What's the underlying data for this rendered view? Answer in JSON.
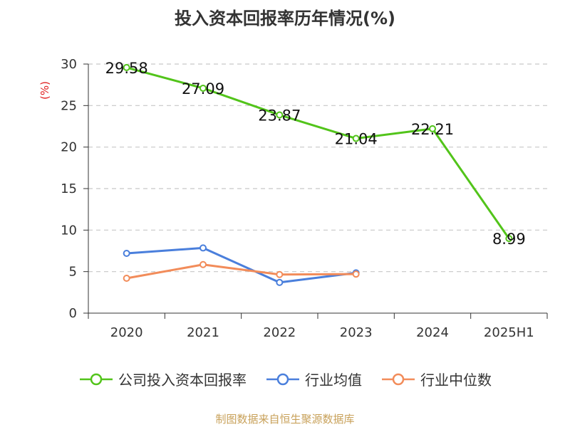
{
  "chart_data": {
    "type": "line",
    "title": "投入资本回报率历年情况(%)",
    "ylabel": "(%)",
    "xlabel": "",
    "categories": [
      "2020",
      "2021",
      "2022",
      "2023",
      "2024",
      "2025H1"
    ],
    "ylim": [
      0,
      30
    ],
    "yticks": [
      0,
      5,
      10,
      15,
      20,
      25,
      30
    ],
    "grid": true,
    "legend_position": "bottom",
    "series": [
      {
        "name": "公司投入资本回报率",
        "color": "#52c41a",
        "values": [
          29.58,
          27.09,
          23.87,
          21.04,
          22.21,
          8.99
        ],
        "labels": [
          "29.58",
          "27.09",
          "23.87",
          "21.04",
          "22.21",
          "8.99"
        ]
      },
      {
        "name": "行业均值",
        "color": "#4a7fdc",
        "values": [
          7.2,
          7.85,
          3.7,
          4.85,
          null,
          null
        ]
      },
      {
        "name": "行业中位数",
        "color": "#f28c5a",
        "values": [
          4.2,
          5.85,
          4.65,
          4.7,
          null,
          null
        ]
      }
    ]
  },
  "source_note": "制图数据来自恒生聚源数据库"
}
